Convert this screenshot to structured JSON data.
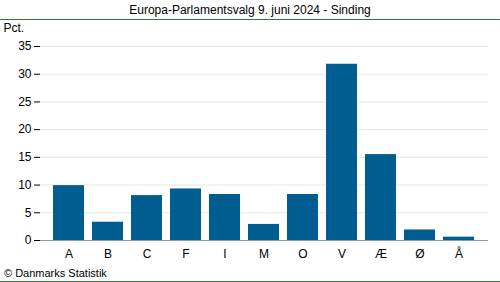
{
  "chart_data": {
    "type": "bar",
    "title": "Europa-Parlamentsvalg 9. juni 2024 - Sinding",
    "y_label": "Pct.",
    "caption": "© Danmarks Statistik",
    "categories": [
      "A",
      "B",
      "C",
      "F",
      "I",
      "M",
      "O",
      "V",
      "Æ",
      "Ø",
      "Å"
    ],
    "values": [
      9.9,
      3.3,
      8.1,
      9.3,
      8.3,
      2.9,
      8.3,
      31.8,
      15.5,
      1.9,
      0.6
    ],
    "color": "#005d8f",
    "ylim": [
      0,
      35
    ],
    "yticks": [
      0,
      5,
      10,
      15,
      20,
      25,
      30,
      35
    ],
    "grid": true
  }
}
